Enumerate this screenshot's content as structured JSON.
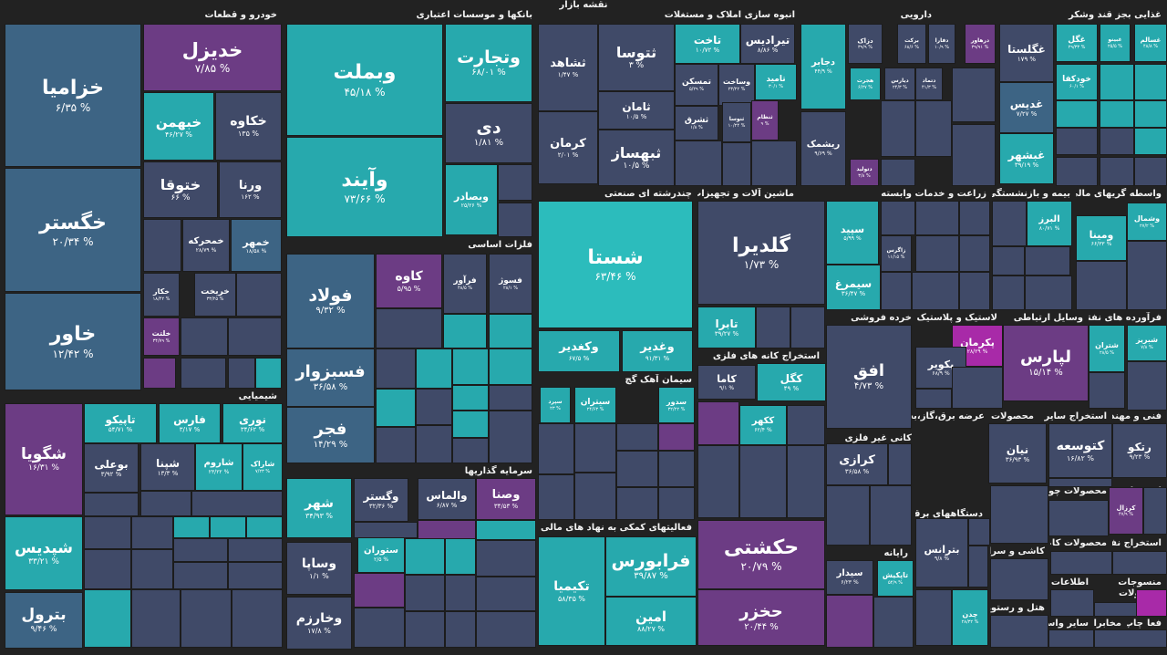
{
  "title": "نقشه بازار",
  "colors": {
    "blue": "#3d6484",
    "teal": "#27a9ad",
    "cyan": "#2cbcbc",
    "slate": "#404a68",
    "purple": "#6c3c84",
    "magenta": "#a82aa8",
    "background": "#222222"
  },
  "sectors": [
    {
      "name": "خودرو و قطعات"
    },
    {
      "name": "بانکها و موسسات اعتباری"
    },
    {
      "name": "انبوه سازی املاک و مستغلات"
    },
    {
      "name": "دارویی"
    },
    {
      "name": "غذایی بجز قند وشکر"
    },
    {
      "name": "فلزات اساسی"
    },
    {
      "name": "چندرشته ای صنعتی"
    },
    {
      "name": "ماشین آلات و تجهیزات"
    },
    {
      "name": "زراعت و خدمات وابسته"
    },
    {
      "name": "بیمه و بازنشستگی"
    },
    {
      "name": "واسطه گریهای مالی و"
    },
    {
      "name": "شیمیایی"
    },
    {
      "name": "سرمایه گذاریها"
    },
    {
      "name": "سیمان آهک گچ"
    },
    {
      "name": "استخراج کانه های فلزی"
    },
    {
      "name": "خرده فروشی"
    },
    {
      "name": "لاستیک و پلاستیک"
    },
    {
      "name": "وسایل ارتباطی"
    },
    {
      "name": "فرآورده های نفتی"
    },
    {
      "name": "فعالیتهای کمکی به نهاد های مالی واسط"
    },
    {
      "name": "حمل و نقل انبارداری و ارتباطات"
    },
    {
      "name": "کانی غیر فلزی"
    },
    {
      "name": "عرضه برق،گاز،بخار و"
    },
    {
      "name": "محصولات"
    },
    {
      "name": "استخراج سایر"
    },
    {
      "name": "فنی و مهندسی"
    },
    {
      "name": "قند و شکر"
    },
    {
      "name": "محصولات چوبی"
    },
    {
      "name": "استخراج زغال"
    },
    {
      "name": "دستگاههای برقی"
    },
    {
      "name": "کاشی و سرامیک"
    },
    {
      "name": "محصولات کاغذی"
    },
    {
      "name": "استخراج نفت"
    },
    {
      "name": "رایانه"
    },
    {
      "name": "محصولات فلزی"
    },
    {
      "name": "هتل و رستوران"
    },
    {
      "name": "اطلاعات و"
    },
    {
      "name": "منسوجات"
    },
    {
      "name": "محصولات"
    },
    {
      "name": "سایر واسطه"
    },
    {
      "name": "فعالیت"
    },
    {
      "name": "چاپ"
    },
    {
      "name": "مخابرات"
    }
  ],
  "tiles": [
    {
      "name": "خزامیا",
      "change": "% ۶/۳۵",
      "color": "blue"
    },
    {
      "name": "خگستر",
      "change": "% ۲۰/۳۴",
      "color": "blue"
    },
    {
      "name": "خاور",
      "change": "% ۱۲/۴۲",
      "color": "blue"
    },
    {
      "name": "خدیزل",
      "change": "% ۷/۸۵",
      "color": "purple"
    },
    {
      "name": "خبهمن",
      "change": "% ۴۶/۲۷",
      "color": "teal"
    },
    {
      "name": "خکاوه",
      "change": "% ۱۳۵",
      "color": "slate"
    },
    {
      "name": "ختوقا",
      "change": "% ۶۶",
      "color": "slate"
    },
    {
      "name": "ورنا",
      "change": "% ۱۶۲",
      "color": "slate"
    },
    {
      "name": "خمحرکه",
      "change": "% ۲۸/۷۹",
      "color": "slate"
    },
    {
      "name": "خمهر",
      "change": "% ۱۸/۵۸",
      "color": "blue"
    },
    {
      "name": "خکار",
      "change": "% ۱۸/۴۲",
      "color": "slate"
    },
    {
      "name": "خریخت",
      "change": "% ۳۳/۲۵",
      "color": "slate"
    },
    {
      "name": "خلتت",
      "change": "% ۳۴/۷۹",
      "color": "purple"
    },
    {
      "name": "وبملت",
      "change": "% ۴۵/۱۸",
      "color": "teal"
    },
    {
      "name": "وتجارت",
      "change": "% ۶۸/۰۱",
      "color": "teal"
    },
    {
      "name": "دی",
      "change": "% ۱/۸۱",
      "color": "slate"
    },
    {
      "name": "وآیند",
      "change": "% ۷۳/۶۶",
      "color": "teal"
    },
    {
      "name": "وبصادر",
      "change": "% ۲۵/۲۶",
      "color": "teal"
    },
    {
      "name": "ثشاهد",
      "change": "% ۱/۴۷",
      "color": "slate"
    },
    {
      "name": "ثتوسا",
      "change": "% ۳",
      "color": "slate"
    },
    {
      "name": "ثامان",
      "change": "% ۱۰/۵",
      "color": "slate"
    },
    {
      "name": "کرمان",
      "change": "% ۲/۰۱",
      "color": "slate"
    },
    {
      "name": "ثبهساز",
      "change": "% ۱۰/۵",
      "color": "slate"
    },
    {
      "name": "تاخت",
      "change": "% ۱۰/۷۲",
      "color": "teal"
    },
    {
      "name": "تیرادیس",
      "change": "% ۸/۸۶",
      "color": "slate"
    },
    {
      "name": "تمسکن",
      "change": "% ۵/۲۹",
      "color": "slate"
    },
    {
      "name": "وساخت",
      "change": "% ۲۳/۲۲",
      "color": "slate"
    },
    {
      "name": "تامید",
      "change": "% ۳۰/۱",
      "color": "teal"
    },
    {
      "name": "ثشرق",
      "change": "% ۱/۸",
      "color": "slate"
    },
    {
      "name": "ثنوسا",
      "change": "% ۱۰/۲۴",
      "color": "slate"
    },
    {
      "name": "ثنظام",
      "change": "% ۹",
      "color": "purple"
    },
    {
      "name": "دجابر",
      "change": "% ۴۴/۹",
      "color": "teal"
    },
    {
      "name": "دزاک",
      "change": "% ۳۹/۹",
      "color": "slate"
    },
    {
      "name": "برکت",
      "change": "% ۶۸/۶",
      "color": "slate"
    },
    {
      "name": "دفارا",
      "change": "% ۱۰/۹",
      "color": "slate"
    },
    {
      "name": "درهاور",
      "change": "% ۳۹/۹۱",
      "color": "purple"
    },
    {
      "name": "هجرت",
      "change": "% ۶/۲۷",
      "color": "teal"
    },
    {
      "name": "دیارس",
      "change": "% ۲۴/۳",
      "color": "slate"
    },
    {
      "name": "دتماد",
      "change": "% ۴۱/۳",
      "color": "slate"
    },
    {
      "name": "ریشمک",
      "change": "% ۹/۶۹",
      "color": "slate"
    },
    {
      "name": "دتولید",
      "change": "% ۳/۸",
      "color": "purple"
    },
    {
      "name": "غگلستا",
      "change": "% ۱۷۹",
      "color": "slate"
    },
    {
      "name": "غگل",
      "change": "% ۲۹/۳۳",
      "color": "teal"
    },
    {
      "name": "غبینو",
      "change": "% ۲۵/۵",
      "color": "teal"
    },
    {
      "name": "غسالم",
      "change": "% ۴۸/۸",
      "color": "teal"
    },
    {
      "name": "خودکفا",
      "change": "% ۶۰/۱",
      "color": "teal"
    },
    {
      "name": "غدیس",
      "change": "% ۷/۲۷",
      "color": "blue"
    },
    {
      "name": "غبشهر",
      "change": "% ۳۹/۱۹",
      "color": "teal"
    },
    {
      "name": "فولاد",
      "change": "% ۹/۳۲",
      "color": "blue"
    },
    {
      "name": "کاوه",
      "change": "% ۵/۹۵",
      "color": "purple"
    },
    {
      "name": "فرآور",
      "change": "% ۴۸/۵",
      "color": "slate"
    },
    {
      "name": "فسوژ",
      "change": "% ۲۸/۱",
      "color": "slate"
    },
    {
      "name": "فسبزوار",
      "change": "% ۳۶/۵۸",
      "color": "blue"
    },
    {
      "name": "فجر",
      "change": "% ۱۴/۲۹",
      "color": "blue"
    },
    {
      "name": "شستا",
      "change": "% ۶۳/۴۶",
      "color": "cyan"
    },
    {
      "name": "وکغدیر",
      "change": "% ۶۷/۵",
      "color": "teal"
    },
    {
      "name": "وغدیر",
      "change": "% ۹۱/۳۱",
      "color": "teal"
    },
    {
      "name": "گلدیرا",
      "change": "% ۱/۷۳",
      "color": "slate"
    },
    {
      "name": "تابرا",
      "change": "% ۳۹/۲۷",
      "color": "teal"
    },
    {
      "name": "سپید",
      "change": "% ۵/۹۹",
      "color": "teal"
    },
    {
      "name": "زاگرس",
      "change": "% ۱۱/۱۵",
      "color": "slate"
    },
    {
      "name": "سیمرغ",
      "change": "% ۳۶/۴۷",
      "color": "teal"
    },
    {
      "name": "البرز",
      "change": "% ۸۰/۷۱",
      "color": "teal"
    },
    {
      "name": "وشمال",
      "change": "% ۲۷/۲",
      "color": "teal"
    },
    {
      "name": "شگویا",
      "change": "% ۱۶/۳۱",
      "color": "purple"
    },
    {
      "name": "شپدیس",
      "change": "% ۳۳/۲۱",
      "color": "teal"
    },
    {
      "name": "تاپیکو",
      "change": "% ۵۴/۷۱",
      "color": "teal"
    },
    {
      "name": "فارس",
      "change": "% ۳/۱۷",
      "color": "teal"
    },
    {
      "name": "نوری",
      "change": "% ۳۴/۶۲",
      "color": "teal"
    },
    {
      "name": "بوعلی",
      "change": "% ۳/۹۲",
      "color": "slate"
    },
    {
      "name": "شپنا",
      "change": "% ۱۳/۳",
      "color": "slate"
    },
    {
      "name": "شاروم",
      "change": "% ۲۳/۲۲",
      "color": "teal"
    },
    {
      "name": "شاراک",
      "change": "% ۷/۲۳",
      "color": "teal"
    },
    {
      "name": "بترول",
      "change": "% ۹/۴۶",
      "color": "blue"
    },
    {
      "name": "شهر",
      "change": "% ۳۴/۹۳",
      "color": "teal"
    },
    {
      "name": "وگستر",
      "change": "% ۳۲/۳۶",
      "color": "slate"
    },
    {
      "name": "والماس",
      "change": "% ۶/۸۷",
      "color": "slate"
    },
    {
      "name": "وصنا",
      "change": "% ۳۴/۵۳",
      "color": "purple"
    },
    {
      "name": "وساپا",
      "change": "% ۱/۱",
      "color": "slate"
    },
    {
      "name": "وخارزم",
      "change": "% ۱۷/۸",
      "color": "slate"
    },
    {
      "name": "ستوران",
      "change": "% ۲/۵",
      "color": "teal"
    },
    {
      "name": "سپرد",
      "change": "% ۲۳",
      "color": "teal"
    },
    {
      "name": "سیتران",
      "change": "% ۲۴/۶۳",
      "color": "teal"
    },
    {
      "name": "سدور",
      "change": "% ۳۲/۲۲",
      "color": "teal"
    },
    {
      "name": "تکیمیا",
      "change": "% ۵۸/۳۵",
      "color": "teal"
    },
    {
      "name": "فرابورس",
      "change": "% ۳۹/۸۷",
      "color": "teal"
    },
    {
      "name": "امین",
      "change": "% ۸۸/۲۷",
      "color": "teal"
    },
    {
      "name": "کگل",
      "change": "% ۴۹",
      "color": "teal"
    },
    {
      "name": "کاما",
      "change": "% ۹/۱",
      "color": "slate"
    },
    {
      "name": "ککهر",
      "change": "% ۶۲/۴",
      "color": "teal"
    },
    {
      "name": "حکشتی",
      "change": "% ۲۰/۷۹",
      "color": "purple"
    },
    {
      "name": "حخزر",
      "change": "% ۲۰/۴۴",
      "color": "purple"
    },
    {
      "name": "افق",
      "change": "% ۴/۷۳",
      "color": "slate"
    },
    {
      "name": "پکرمان",
      "change": "% ۲۸/۲۹",
      "color": "magenta"
    },
    {
      "name": "پکویر",
      "change": "% ۶۸/۹",
      "color": "slate"
    },
    {
      "name": "لپارس",
      "change": "% ۱۵/۱۴",
      "color": "purple"
    },
    {
      "name": "شبریز",
      "change": "% ۷/۸",
      "color": "teal"
    },
    {
      "name": "شتران",
      "change": "% ۲۸/۵",
      "color": "teal"
    },
    {
      "name": "ومینا",
      "change": "% ۶۶/۳۳",
      "color": "teal"
    },
    {
      "name": "نیان",
      "change": "% ۳۶/۹۳",
      "color": "slate"
    },
    {
      "name": "کتوسعه",
      "change": "% ۱۶/۸۲",
      "color": "slate"
    },
    {
      "name": "رتکو",
      "change": "% ۹/۲۳",
      "color": "slate"
    },
    {
      "name": "کرزال",
      "change": "% ۴۷/۹",
      "color": "purple"
    },
    {
      "name": "کرازی",
      "change": "% ۳۶/۵۸",
      "color": "slate"
    },
    {
      "name": "بترانس",
      "change": "% ۹/۸",
      "color": "slate"
    },
    {
      "name": "تاپکیش",
      "change": "% ۵۴/۹",
      "color": "teal"
    },
    {
      "name": "سیدار",
      "change": "% ۶/۲۳",
      "color": "slate"
    },
    {
      "name": "چدن",
      "change": "% ۲۸/۳۲",
      "color": "teal"
    }
  ]
}
